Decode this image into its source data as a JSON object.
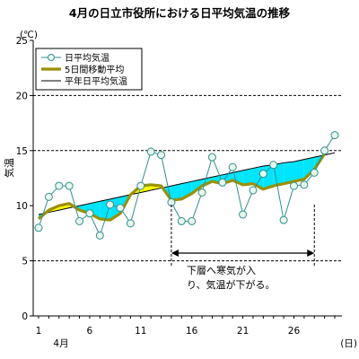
{
  "chart_data": {
    "type": "line",
    "title": "4月の日立市役所における日平均気温の推移",
    "ylabel": "気温",
    "yunit": "(℃)",
    "xunit": "(日)",
    "month_label": "4月",
    "ylim": [
      0,
      25
    ],
    "yticks": [
      0,
      5,
      10,
      15,
      20,
      25
    ],
    "x": [
      1,
      2,
      3,
      4,
      5,
      6,
      7,
      8,
      9,
      10,
      11,
      12,
      13,
      14,
      15,
      16,
      17,
      18,
      19,
      20,
      21,
      22,
      23,
      24,
      25,
      26,
      27,
      28,
      29,
      30
    ],
    "xtick_labels": [
      1,
      6,
      11,
      16,
      21,
      26
    ],
    "grid_y": [
      5,
      15,
      20
    ],
    "legend_position": "top-left",
    "series": [
      {
        "name": "日平均気温",
        "color": "#2f8f8f",
        "marker": "circle",
        "values": [
          8.0,
          10.8,
          11.8,
          11.8,
          8.6,
          9.3,
          7.3,
          10.1,
          9.8,
          8.4,
          11.8,
          14.9,
          14.6,
          10.3,
          8.6,
          8.6,
          11.2,
          14.4,
          12.1,
          13.5,
          9.2,
          11.4,
          12.9,
          13.7,
          8.7,
          11.8,
          11.9,
          13.0,
          15.0,
          16.4
        ]
      },
      {
        "name": "5日間移動平均",
        "color": "#9a9000",
        "values": [
          8.8,
          9.6,
          10.0,
          10.2,
          9.6,
          9.3,
          8.8,
          8.7,
          9.3,
          11.0,
          11.8,
          11.9,
          11.8,
          10.5,
          10.6,
          11.1,
          11.8,
          12.2,
          12.0,
          12.3,
          11.9,
          12.0,
          11.5,
          11.8,
          12.0,
          12.2,
          12.4,
          13.3,
          14.7,
          null
        ]
      },
      {
        "name": "平年日平均気温",
        "color": "#000000",
        "values": [
          9.2,
          9.4,
          9.6,
          9.8,
          10.0,
          10.2,
          10.4,
          10.6,
          10.8,
          11.0,
          11.2,
          11.4,
          11.6,
          11.8,
          12.0,
          12.2,
          12.4,
          12.6,
          12.8,
          13.0,
          13.2,
          13.4,
          13.6,
          13.7,
          13.9,
          14.0,
          14.2,
          14.4,
          14.6,
          14.8
        ]
      }
    ],
    "fill": {
      "above_normal_color": "#ffff00",
      "below_normal_color": "#00e5ff"
    },
    "annotation": {
      "range": [
        14,
        28
      ],
      "lines": [
        "下層へ寒気が入",
        "り、気温が下がる。"
      ]
    }
  }
}
